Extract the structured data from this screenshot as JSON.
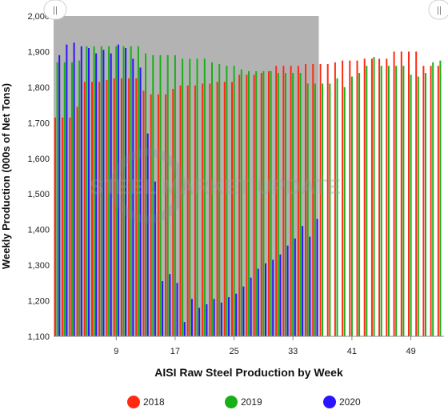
{
  "chart_data": {
    "type": "bar",
    "xlabel": "AISI Raw Steel Production by Week",
    "ylabel": "Weekly Production (000s of Net Tons)",
    "ylim": [
      1100,
      2000
    ],
    "yticks": [
      "1,100",
      "1,200",
      "1,300",
      "1,400",
      "1,500",
      "1,600",
      "1,700",
      "1,800",
      "1,900",
      "2,000"
    ],
    "xlim": [
      0.5,
      53.5
    ],
    "xticks": [
      "9",
      "17",
      "25",
      "33",
      "41",
      "49"
    ],
    "grid": false,
    "legend_position": "bottom",
    "watermark": "STEEL MARKET UPDATE",
    "series": [
      {
        "name": "2018",
        "color": "#ff2a12",
        "values": [
          1715,
          1715,
          1715,
          1745,
          1815,
          1815,
          1815,
          1820,
          1825,
          1825,
          1825,
          1825,
          1790,
          1780,
          1780,
          1780,
          1795,
          1805,
          1805,
          1805,
          1810,
          1810,
          1815,
          1815,
          1815,
          1835,
          1835,
          1835,
          1840,
          1845,
          1860,
          1860,
          1860,
          1860,
          1865,
          1865,
          1865,
          1865,
          1870,
          1875,
          1875,
          1875,
          1880,
          1880,
          1880,
          1880,
          1900,
          1900,
          1900,
          1900,
          1860,
          1860,
          1860
        ]
      },
      {
        "name": "2019",
        "color": "#18b018",
        "values": [
          1870,
          1870,
          1870,
          1875,
          1915,
          1915,
          1915,
          1915,
          1915,
          1915,
          1915,
          1915,
          1895,
          1890,
          1890,
          1890,
          1890,
          1880,
          1880,
          1880,
          1880,
          1870,
          1865,
          1860,
          1860,
          1850,
          1845,
          1845,
          1845,
          1845,
          1840,
          1840,
          1840,
          1840,
          1810,
          1810,
          1810,
          1810,
          1825,
          1800,
          1830,
          1840,
          1860,
          1885,
          1860,
          1860,
          1860,
          1860,
          1835,
          1830,
          1840,
          1870,
          1875
        ]
      },
      {
        "name": "2020",
        "color": "#2a14ff",
        "values": [
          1890,
          1920,
          1925,
          1915,
          1910,
          1895,
          1905,
          1895,
          1920,
          1910,
          1880,
          1855,
          1670,
          1535,
          1255,
          1275,
          1250,
          1140,
          1205,
          1180,
          1190,
          1205,
          1195,
          1210,
          1220,
          1240,
          1265,
          1290,
          1305,
          1315,
          1330,
          1355,
          1375,
          1410,
          1380,
          1430
        ]
      }
    ]
  }
}
